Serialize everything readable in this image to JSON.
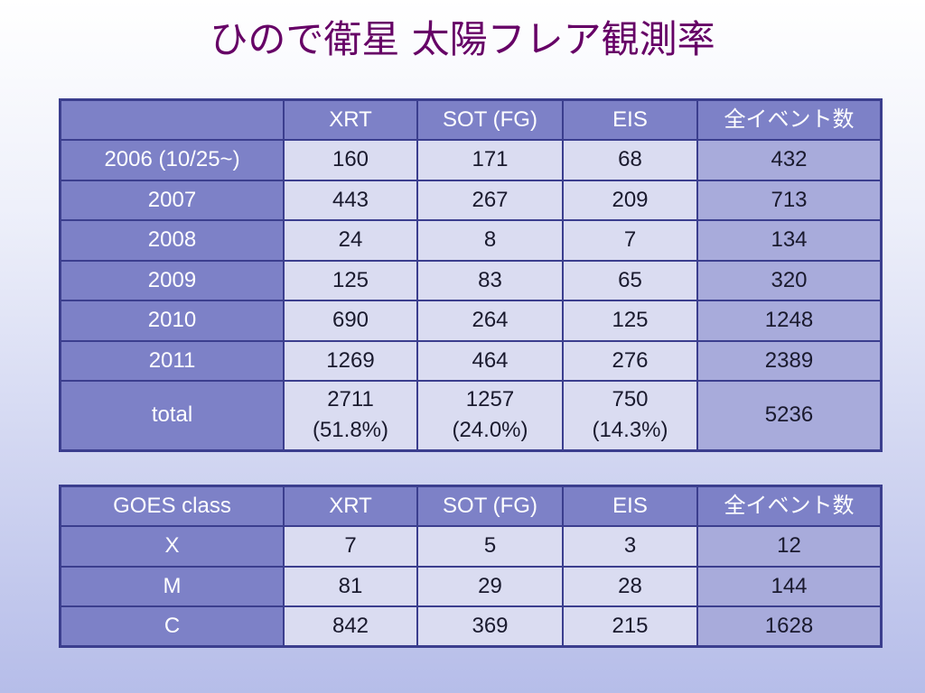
{
  "title": "ひので衛星 太陽フレア観測率",
  "colors": {
    "title": "#660066",
    "header_bg": "#7d81c7",
    "cell_bg": "#dadcf1",
    "last_col_bg": "#a8abdb",
    "border": "#3b3e8e",
    "background_bottom": "#b6bde9"
  },
  "year_table": {
    "columns": [
      "XRT",
      "SOT (FG)",
      "EIS",
      "全イベント数"
    ],
    "rows": [
      [
        "2006 (10/25~)",
        "160",
        "171",
        "68",
        "432"
      ],
      [
        "2007",
        "443",
        "267",
        "209",
        "713"
      ],
      [
        "2008",
        "24",
        "8",
        "7",
        "134"
      ],
      [
        "2009",
        "125",
        "83",
        "65",
        "320"
      ],
      [
        "2010",
        "690",
        "264",
        "125",
        "1248"
      ],
      [
        "2011",
        "1269",
        "464",
        "276",
        "2389"
      ]
    ],
    "total": {
      "label": "total",
      "xrt": [
        "2711",
        "(51.8%)"
      ],
      "sot": [
        "1257",
        "(24.0%)"
      ],
      "eis": [
        "750",
        "(14.3%)"
      ],
      "all": "5236"
    }
  },
  "goes_table": {
    "row_header_label": "GOES class",
    "columns": [
      "XRT",
      "SOT (FG)",
      "EIS",
      "全イベント数"
    ],
    "rows": [
      [
        "X",
        "7",
        "5",
        "3",
        "12"
      ],
      [
        "M",
        "81",
        "29",
        "28",
        "144"
      ],
      [
        "C",
        "842",
        "369",
        "215",
        "1628"
      ]
    ]
  }
}
